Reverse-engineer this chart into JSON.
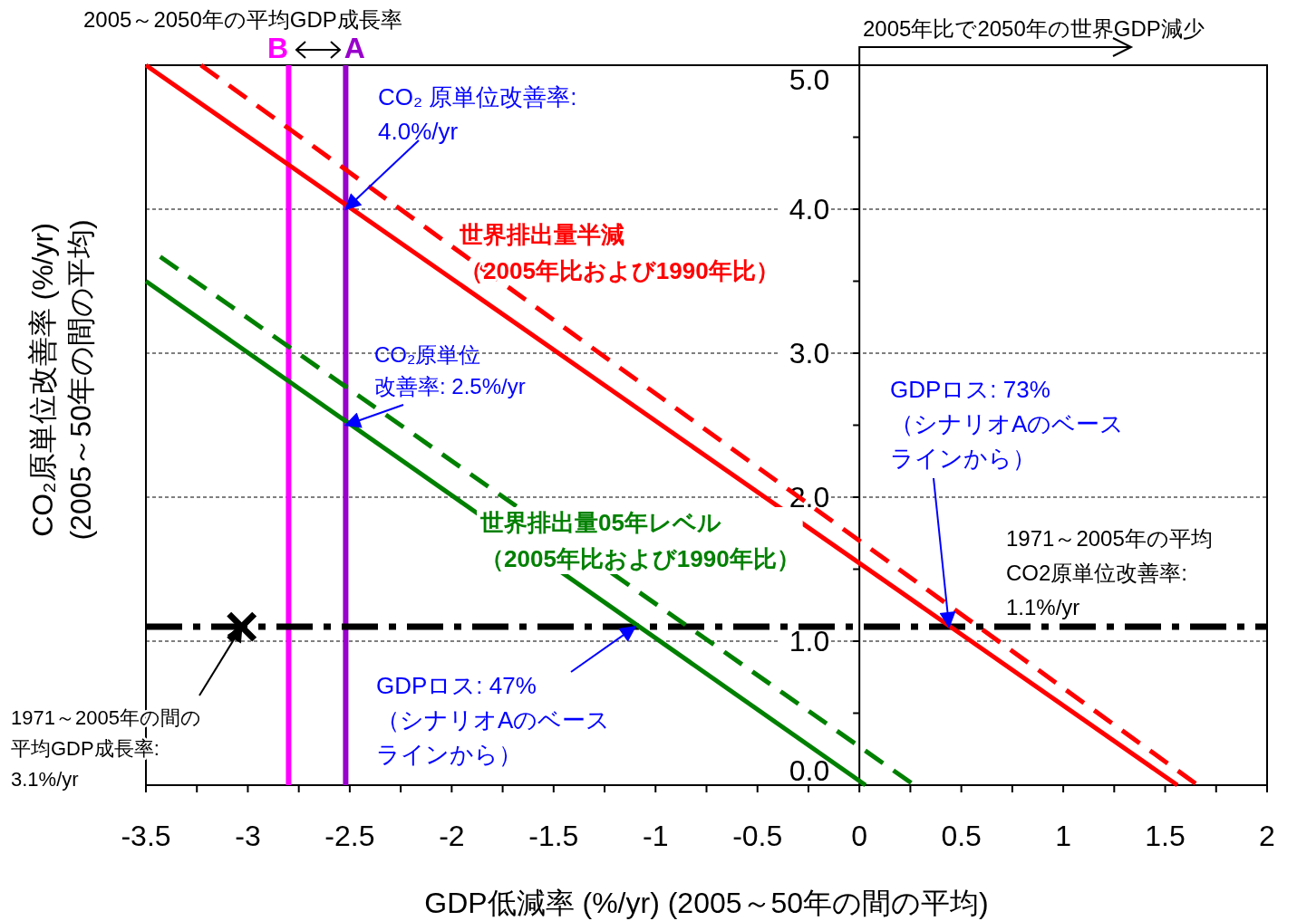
{
  "chart_data": {
    "type": "line",
    "xlabel": "GDP低減率 (%/yr)  (2005～50年の間の平均)",
    "ylabel": "CO₂原単位改善率 (%/yr)\n(2005～50年の間の平均)",
    "xlim": [
      -3.5,
      2
    ],
    "ylim": [
      0,
      5
    ],
    "xticks": [
      -3.5,
      {
        "value": -3.25,
        "label": null
      },
      -3,
      {
        "value": -2.75,
        "label": null
      },
      -2.5,
      {
        "value": -2.25,
        "label": null
      },
      -2,
      {
        "value": -1.75,
        "label": null
      },
      -1.5,
      {
        "value": -1.25,
        "label": null
      },
      -1,
      {
        "value": -0.75,
        "label": null
      },
      -0.5,
      {
        "value": -0.25,
        "label": null
      },
      0,
      {
        "value": 0.25,
        "label": null
      },
      0.5,
      {
        "value": 0.75,
        "label": null
      },
      1,
      {
        "value": 1.25,
        "label": null
      },
      1.5,
      {
        "value": 1.75,
        "label": null
      },
      2
    ],
    "yticks": [
      {
        "value": 0,
        "label": "0.0"
      },
      {
        "value": 0.5,
        "label": null
      },
      {
        "value": 1,
        "label": "1.0"
      },
      {
        "value": 1.5,
        "label": null
      },
      {
        "value": 2,
        "label": "2.0"
      },
      {
        "value": 2.5,
        "label": null
      },
      {
        "value": 3,
        "label": "3.0"
      },
      {
        "value": 3.5,
        "label": null
      },
      {
        "value": 4,
        "label": "4.0"
      },
      {
        "value": 4.5,
        "label": null
      },
      {
        "value": 5,
        "label": "5.0"
      }
    ],
    "grid": "y",
    "series": [
      {
        "type": "line",
        "color": "#ff0000",
        "line_style": "solid",
        "x": [
          -3.5,
          1.56
        ],
        "values": [
          5.0,
          0.0
        ]
      },
      {
        "type": "line",
        "color": "#ff0000",
        "line_style": "dashed",
        "x": [
          -3.23,
          1.66
        ],
        "values": [
          5.0,
          0.0
        ]
      },
      {
        "type": "line",
        "color": "#008000",
        "line_style": "solid",
        "x": [
          -3.5,
          0.03
        ],
        "values": [
          3.5,
          0.0
        ]
      },
      {
        "type": "line",
        "color": "#008000",
        "line_style": "dashed",
        "x": [
          -3.43,
          0.27
        ],
        "values": [
          3.67,
          0.0
        ]
      },
      {
        "type": "scatter",
        "color": "#000000",
        "marker": "cross",
        "x": [
          -3.03
        ],
        "values": [
          1.1
        ]
      }
    ],
    "ref_lines": [
      {
        "axis": "x",
        "value": -2.8,
        "label": "B",
        "color": "#ff00ff",
        "line_style": "solid"
      },
      {
        "axis": "x",
        "value": -2.52,
        "label": "A",
        "color": "#9900cc",
        "line_style": "solid"
      },
      {
        "axis": "y",
        "value": 1.1,
        "label": "1971～2005年の平均\nCO2原単位改善率:\n1.1%/yr",
        "color": "#000000",
        "line_style": "dashdot"
      }
    ],
    "annotations": [
      {
        "text": "CO₂ 原単位改善率:\n4.0%/yr",
        "x": -2.52,
        "y": 4.0
      },
      {
        "text": "CO₂原単位改善率: 2.5%/yr",
        "x": -2.52,
        "y": 2.5
      },
      "世界排出量半減（2005年比および1990年比）",
      "世界排出量05年レベル（2005年比および1990年比）",
      {
        "text": "GDPロス: 47%\n（シナリオAのベースラインから）",
        "x": -1.1,
        "y": 1.1
      },
      {
        "text": "GDPロス: 73%\n（シナリオAのベースラインから）",
        "x": 0.44,
        "y": 1.1
      },
      {
        "text": "1971～2005年の間の平均GDP成長率:\n3.1%/yr",
        "x": -3.03,
        "y": 1.1
      },
      "2005～2050年の平均GDP成長率",
      "2005年比で2050年の世界GDP減少"
    ]
  }
}
